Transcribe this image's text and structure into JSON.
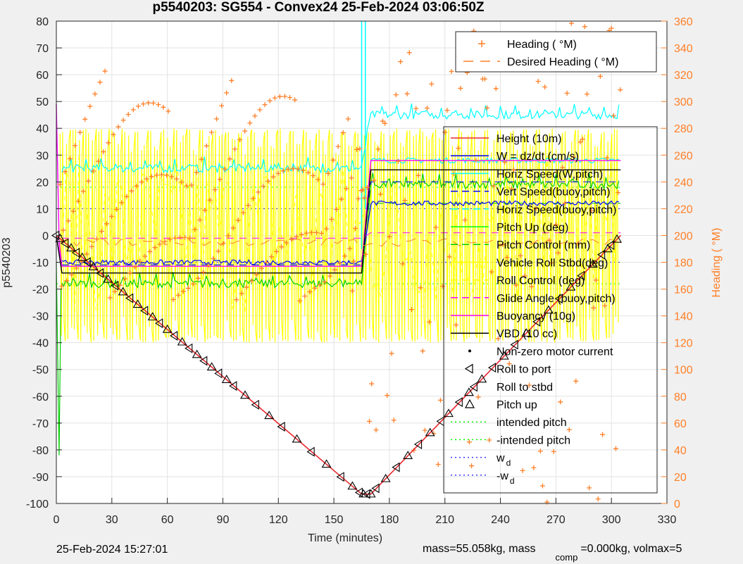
{
  "chart_data": {
    "type": "line",
    "title": "p5540203: SG554 - Convex24 25-Feb-2024 03:06:50Z",
    "xlabel": "Time (minutes)",
    "ylabel": "p5540203",
    "y2label": "Heading ( °M)",
    "xlim": [
      0,
      330
    ],
    "ylim": [
      -100,
      80
    ],
    "y2lim": [
      0,
      360
    ],
    "xticks": [
      0,
      30,
      60,
      90,
      120,
      150,
      180,
      210,
      240,
      270,
      300,
      330
    ],
    "yticks": [
      -100,
      -90,
      -80,
      -70,
      -60,
      -50,
      -40,
      -30,
      -20,
      -10,
      0,
      10,
      20,
      30,
      40,
      50,
      60,
      70,
      80
    ],
    "y2ticks": [
      0,
      20,
      40,
      60,
      80,
      100,
      120,
      140,
      160,
      180,
      200,
      220,
      240,
      260,
      280,
      300,
      320,
      340,
      360
    ],
    "grid": true,
    "colors": {
      "depth": "#e8282e",
      "w": "#0000ff",
      "horiz": "#00ffff",
      "pitch": "#00cc00",
      "roll": "#ffff00",
      "glide": "#ff00ff",
      "vbd": "#000000",
      "heading": "#ff7f27",
      "intended": "#00ff00",
      "wd": "#3a3aff"
    },
    "legend_heading": [
      {
        "label": "Heading ( °M)",
        "style": "plus"
      },
      {
        "label": "Desired Heading ( °M)",
        "style": "dash"
      }
    ],
    "legend_main": [
      {
        "label": "Height (10m)",
        "style": "line",
        "color": "#e8282e"
      },
      {
        "label": "W = dz/dt (cm/s)",
        "style": "line",
        "color": "#0000ff"
      },
      {
        "label": "Horiz Speed(W,pitch)",
        "style": "line",
        "color": "#00ffff"
      },
      {
        "label": "Vert Speed(buoy,pitch)",
        "style": "dash",
        "color": "#0000ff"
      },
      {
        "label": "Horiz Speed(buoy,pitch)",
        "style": "dash",
        "color": "#00ffff"
      },
      {
        "label": "Pitch Up (deg)",
        "style": "line",
        "color": "#00ff00"
      },
      {
        "label": "Pitch Control (mm)",
        "style": "dash",
        "color": "#00cc00"
      },
      {
        "label": "Vehicle Roll Stbd(deg)",
        "style": "line",
        "color": "#ffff00"
      },
      {
        "label": "Roll Control (deg)",
        "style": "dash",
        "color": "#ffff00"
      },
      {
        "label": "Glide Angle (buoy,pitch)",
        "style": "dash",
        "color": "#ff00ff"
      },
      {
        "label": "Buoyancy (10g)",
        "style": "line",
        "color": "#ff00ff"
      },
      {
        "label": "VBD (10 cc)",
        "style": "line",
        "color": "#000000"
      },
      {
        "label": "Non-zero motor current",
        "style": "dot",
        "color": "#000000"
      },
      {
        "label": "Roll to port",
        "style": "tri-left",
        "color": "#000000"
      },
      {
        "label": "Roll to stbd",
        "style": "none",
        "color": "#000000"
      },
      {
        "label": "Pitch up",
        "style": "tri-up",
        "color": "#000000"
      },
      {
        "label": "intended pitch",
        "style": "dotted",
        "color": "#00ff00"
      },
      {
        "label": "-intended pitch",
        "style": "dotted",
        "color": "#00ff00"
      },
      {
        "label": "w",
        "sub": "d",
        "style": "dotted",
        "color": "#3a3aff"
      },
      {
        "label": "-w",
        "sub": "d",
        "style": "dotted",
        "color": "#3a3aff"
      }
    ],
    "series": [
      {
        "name": "Height (10m)",
        "x": [
          0,
          165,
          170,
          305
        ],
        "y": [
          0,
          -96.5,
          -96.5,
          0
        ]
      },
      {
        "name": "VBD (10 cc)",
        "x": [
          0,
          3,
          165,
          170,
          305
        ],
        "y": [
          0,
          -14,
          -14,
          24.5,
          24.5
        ]
      },
      {
        "name": "Buoyancy (10g)",
        "x": [
          0,
          3,
          165,
          170,
          305
        ],
        "y": [
          0,
          -11.5,
          -11.5,
          28,
          28
        ]
      },
      {
        "name": "W = dz/dt (cm/s)",
        "x": [
          3,
          165,
          170,
          305
        ],
        "y": [
          -10,
          -10,
          12,
          12
        ]
      },
      {
        "name": "Horiz Speed(W,pitch)",
        "x": [
          3,
          165,
          170,
          305
        ],
        "y": [
          25,
          25,
          45,
          45
        ]
      },
      {
        "name": "Pitch Up (deg)",
        "x": [
          3,
          165,
          170,
          305
        ],
        "y": [
          -18,
          -18,
          19,
          19
        ]
      }
    ],
    "intended_pitch": [
      18,
      -18
    ],
    "wd": [
      10,
      -10
    ],
    "marker_times": [
      0,
      2,
      5,
      8,
      11,
      14,
      17,
      20,
      24,
      28,
      32,
      36,
      40,
      44,
      48,
      52,
      56,
      60,
      64,
      68,
      72,
      76,
      80,
      84,
      88,
      92,
      96,
      102,
      108,
      115,
      122,
      130,
      138,
      146,
      154,
      160,
      164,
      166,
      168,
      170,
      173,
      178,
      184,
      190,
      196,
      202,
      208,
      212,
      218,
      223,
      226,
      230,
      236,
      242,
      248,
      254,
      260,
      266,
      272,
      278,
      284,
      290,
      295,
      298,
      300,
      303
    ]
  },
  "footer": {
    "timestamp": "25-Feb-2024 15:27:01",
    "mass_prefix": "mass=55.058kg, mass",
    "mass_sub": "comp",
    "mass_suffix": "=0.000kg, volmax=5"
  }
}
